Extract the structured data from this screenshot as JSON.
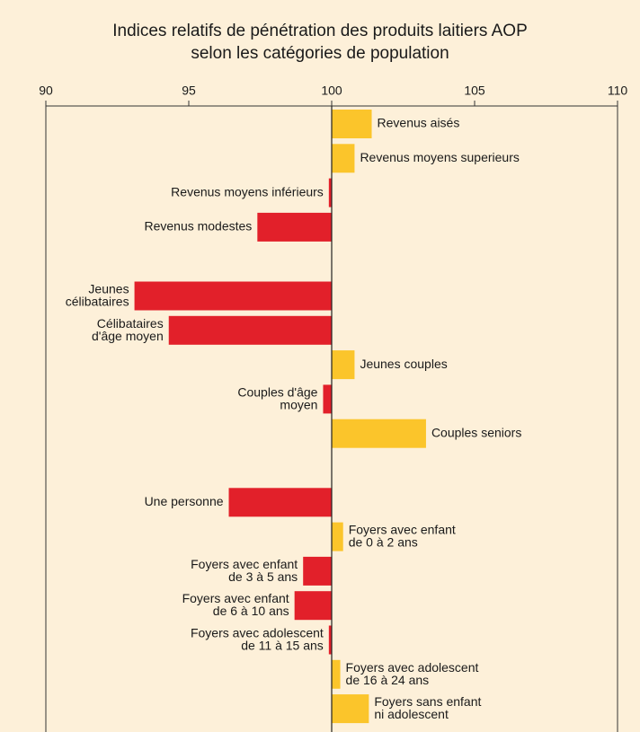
{
  "chart_data": {
    "type": "bar",
    "orientation": "horizontal",
    "title": "Indices relatifs de pénétration des produits laitiers AOP\nselon les catégories de population",
    "categories": [
      "Revenus aisés",
      "Revenus moyens superieurs",
      "Revenus moyens inférieurs",
      "Revenus modestes",
      null,
      "Jeunes\ncélibataires",
      "Célibataires\nd'âge moyen",
      "Jeunes couples",
      "Couples d'âge\nmoyen",
      "Couples seniors",
      null,
      "Une personne",
      "Foyers avec enfant\nde 0 à 2 ans",
      "Foyers avec enfant\nde 3 à 5 ans",
      "Foyers avec enfant\nde 6 à 10 ans",
      "Foyers avec adolescent\nde 11 à 15 ans",
      "Foyers avec adolescent\nde 16 à 24 ans",
      "Foyers sans enfant\nni adolescent"
    ],
    "values": [
      101.4,
      100.8,
      99.9,
      97.4,
      null,
      93.1,
      94.3,
      100.8,
      99.7,
      103.3,
      null,
      96.4,
      100.4,
      99.0,
      98.7,
      99.9,
      100.3,
      101.3
    ],
    "base": 100,
    "colors": {
      "above": "#fbc52b",
      "below": "#e2202a"
    },
    "xlim": [
      90,
      110
    ],
    "xticks": [
      90,
      95,
      100,
      105,
      110
    ]
  }
}
